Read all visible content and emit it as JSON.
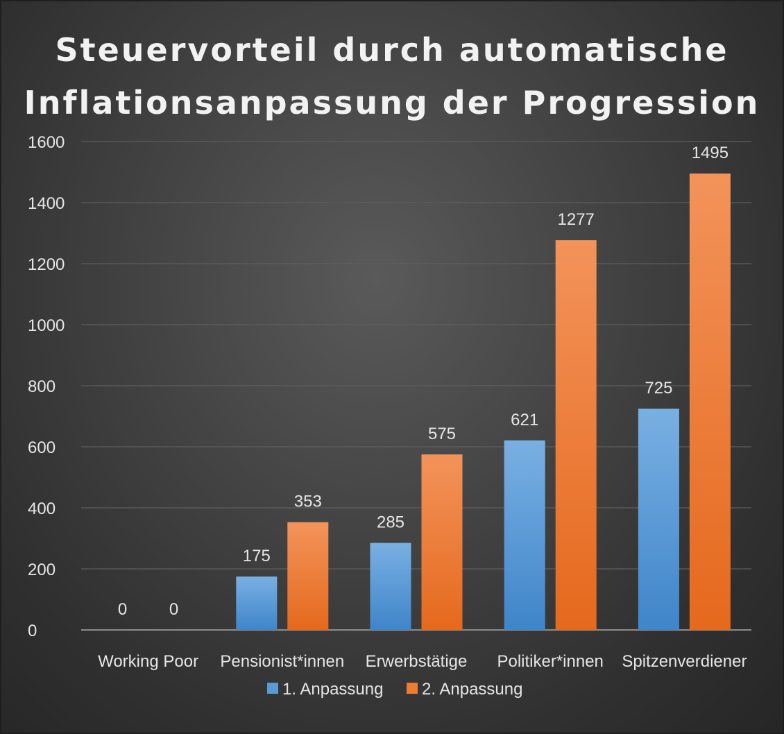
{
  "chart_data": {
    "type": "bar",
    "title_lines": [
      "Steuervorteil durch automatische",
      "Inflationsanpassung der Progression"
    ],
    "categories": [
      "Working Poor",
      "Pensionist*innen",
      "Erwerbstätige",
      "Politiker*innen",
      "Spitzenverdiener"
    ],
    "series": [
      {
        "name": "1. Anpassung",
        "values": [
          0,
          175,
          285,
          621,
          725
        ],
        "color": "#5b9bd5"
      },
      {
        "name": "2. Anpassung",
        "values": [
          0,
          353,
          575,
          1277,
          1495
        ],
        "color": "#ed7d31"
      }
    ],
    "ylim": [
      0,
      1600
    ],
    "yticks": [
      0,
      200,
      400,
      600,
      800,
      1000,
      1200,
      1400,
      1600
    ],
    "grid": true,
    "legend_position": "bottom",
    "data_labels": true
  }
}
